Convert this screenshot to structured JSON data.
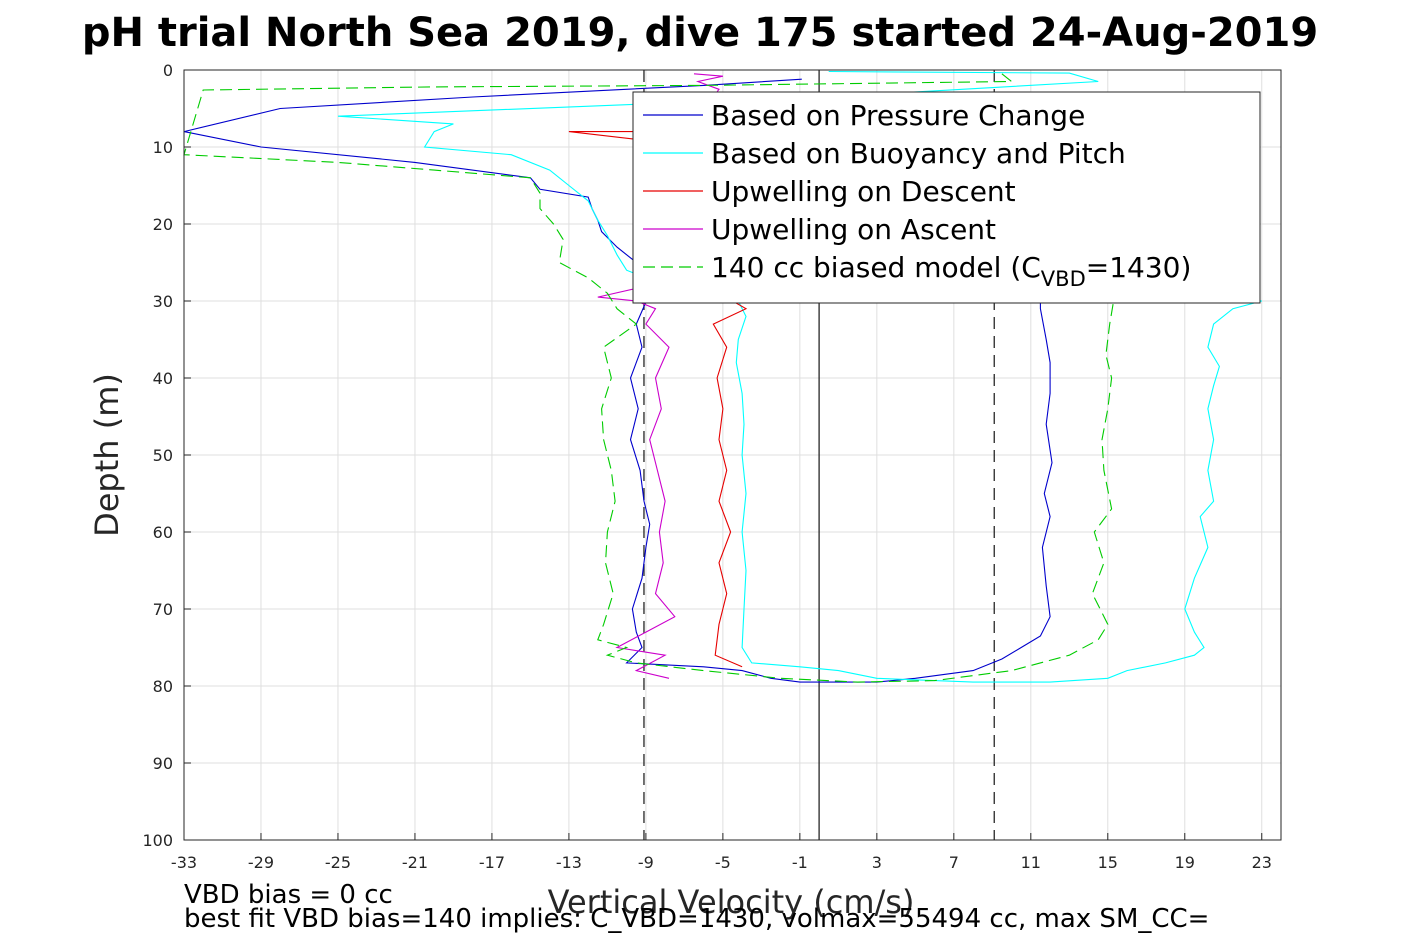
{
  "chart_data": {
    "type": "line",
    "title": "pH trial North Sea 2019, dive 175 started 24-Aug-2019",
    "xlabel": "Vertical Velocity (cm/s)",
    "ylabel": "Depth (m)",
    "xlim": [
      -33,
      24
    ],
    "ylim": [
      0,
      100
    ],
    "y_reversed": true,
    "grid": true,
    "x_ticks": [
      -33,
      -29,
      -25,
      -21,
      -17,
      -13,
      -9,
      -5,
      -1,
      3,
      7,
      11,
      15,
      19,
      23
    ],
    "y_ticks": [
      0,
      10,
      20,
      30,
      40,
      50,
      60,
      70,
      80,
      90,
      100
    ],
    "reference_lines": [
      {
        "x": 0,
        "style": "solid"
      },
      {
        "x": -9.1,
        "style": "dashed"
      },
      {
        "x": 9.1,
        "style": "dashed"
      }
    ],
    "legend": {
      "position": "top-right",
      "entries": [
        {
          "label": "Based on Pressure Change",
          "color": "#0000cc",
          "style": "solid"
        },
        {
          "label": "Based on Buoyancy and Pitch",
          "color": "#00ffff",
          "style": "solid"
        },
        {
          "label": "Upwelling on Descent",
          "color": "#e60000",
          "style": "solid"
        },
        {
          "label": "Upwelling on Ascent",
          "color": "#cc00cc",
          "style": "solid"
        },
        {
          "label_main": "140 cc biased model (C",
          "label_sub": "VBD",
          "label_end": "=1430)",
          "color": "#00cc00",
          "style": "dashed"
        }
      ]
    },
    "series": [
      {
        "name": "Based on Pressure Change",
        "color": "#0000cc",
        "dash": false,
        "points": [
          [
            -0.9,
            1.2
          ],
          [
            -6,
            2
          ],
          [
            -18,
            3.5
          ],
          [
            -28,
            5
          ],
          [
            -33,
            8
          ],
          [
            -29,
            10
          ],
          [
            -21,
            12
          ],
          [
            -15,
            14
          ],
          [
            -14.5,
            15.5
          ],
          [
            -12,
            16.5
          ],
          [
            -11.8,
            18
          ],
          [
            -11.5,
            19.5
          ],
          [
            -11.3,
            21
          ],
          [
            -10.5,
            23
          ],
          [
            -9.5,
            25
          ],
          [
            -9,
            27
          ],
          [
            -8.8,
            29
          ],
          [
            -9.5,
            33
          ],
          [
            -9.2,
            36
          ],
          [
            -9.8,
            40
          ],
          [
            -9.4,
            44
          ],
          [
            -9.8,
            48
          ],
          [
            -9.3,
            52
          ],
          [
            -9.1,
            56
          ],
          [
            -8.8,
            59
          ],
          [
            -9,
            62
          ],
          [
            -9.2,
            66
          ],
          [
            -9.7,
            70
          ],
          [
            -9.5,
            73
          ],
          [
            -9.2,
            75
          ],
          [
            -10,
            77
          ],
          [
            -6,
            77.5
          ],
          [
            -4,
            78
          ],
          [
            -2.5,
            79
          ],
          [
            -1,
            79.5
          ],
          [
            3,
            79.5
          ],
          [
            5,
            79
          ],
          [
            8,
            78
          ],
          [
            9.5,
            76.5
          ],
          [
            10.5,
            75
          ],
          [
            11.5,
            73.5
          ],
          [
            12,
            71
          ],
          [
            11.8,
            67
          ],
          [
            11.6,
            62
          ],
          [
            12,
            58
          ],
          [
            11.7,
            55
          ],
          [
            12.1,
            51
          ],
          [
            11.8,
            46
          ],
          [
            12,
            42
          ],
          [
            12,
            38
          ],
          [
            11.8,
            35
          ],
          [
            11.5,
            31
          ],
          [
            11.5,
            29
          ]
        ]
      },
      {
        "name": "Based on Buoyancy and Pitch",
        "color": "#00ffff",
        "dash": false,
        "points": [
          [
            0.5,
            0.2
          ],
          [
            13,
            0.4
          ],
          [
            14.5,
            1.5
          ],
          [
            4,
            3
          ],
          [
            -5,
            4
          ],
          [
            -25,
            6
          ],
          [
            -19,
            7
          ],
          [
            -20,
            8
          ],
          [
            -20.5,
            10
          ],
          [
            -16,
            11
          ],
          [
            -14,
            13
          ],
          [
            -13,
            15
          ],
          [
            -12,
            17
          ],
          [
            -11.5,
            19.5
          ],
          [
            -11,
            21.5
          ],
          [
            -10.5,
            24
          ],
          [
            -10,
            26
          ],
          [
            -8,
            28
          ],
          [
            -4,
            29
          ],
          [
            -4.2,
            30
          ],
          [
            -3.8,
            32
          ],
          [
            -4.2,
            35
          ],
          [
            -4.3,
            38
          ],
          [
            -4,
            42
          ],
          [
            -3.9,
            46
          ],
          [
            -4,
            50
          ],
          [
            -3.8,
            55
          ],
          [
            -4,
            60
          ],
          [
            -3.8,
            65
          ],
          [
            -3.9,
            70
          ],
          [
            -4,
            75
          ],
          [
            -3.5,
            77
          ],
          [
            -1,
            77.5
          ],
          [
            1,
            78
          ],
          [
            3,
            79
          ],
          [
            8,
            79.5
          ],
          [
            12,
            79.5
          ],
          [
            15,
            79
          ],
          [
            16,
            78
          ],
          [
            18,
            77
          ],
          [
            19.5,
            76
          ],
          [
            20,
            75
          ],
          [
            19.5,
            73
          ],
          [
            19,
            70
          ],
          [
            19.5,
            66
          ],
          [
            20.2,
            62
          ],
          [
            19.8,
            58
          ],
          [
            20.5,
            56
          ],
          [
            20.2,
            52
          ],
          [
            20.5,
            48
          ],
          [
            20.2,
            44
          ],
          [
            20.5,
            41
          ],
          [
            20.8,
            38.5
          ],
          [
            20.2,
            36
          ],
          [
            20.5,
            33
          ],
          [
            21.5,
            31
          ],
          [
            23,
            30
          ],
          [
            20,
            29
          ]
        ]
      },
      {
        "name": "Upwelling on Descent",
        "color": "#e60000",
        "dash": false,
        "points": [
          [
            -3,
            8
          ],
          [
            -13,
            8
          ],
          [
            -9.5,
            9
          ],
          [
            -9.5,
            10
          ]
        ]
      },
      {
        "name": "Upwelling on Descent",
        "color": "#e60000",
        "dash": false,
        "points": [
          [
            -3.8,
            29
          ],
          [
            -4.5,
            30
          ],
          [
            -3.8,
            31
          ],
          [
            -5.5,
            33
          ],
          [
            -4.8,
            36
          ],
          [
            -5.3,
            40
          ],
          [
            -5,
            44
          ],
          [
            -5.2,
            48
          ],
          [
            -4.8,
            52
          ],
          [
            -5.2,
            56
          ],
          [
            -4.6,
            60
          ],
          [
            -5.2,
            64
          ],
          [
            -4.8,
            68
          ],
          [
            -5.2,
            72
          ],
          [
            -5.4,
            76
          ],
          [
            -4,
            77.5
          ]
        ]
      },
      {
        "name": "Upwelling on Ascent",
        "color": "#cc00cc",
        "dash": false,
        "points": [
          [
            -6.5,
            0.5
          ],
          [
            -5,
            0.8
          ],
          [
            -6.3,
            1.5
          ],
          [
            -5.2,
            2.5
          ],
          [
            -5.5,
            3.5
          ]
        ]
      },
      {
        "name": "Upwelling on Ascent",
        "color": "#cc00cc",
        "dash": false,
        "points": [
          [
            -8,
            27.5
          ],
          [
            -11.5,
            29.5
          ],
          [
            -9.5,
            30
          ],
          [
            -8.5,
            31
          ],
          [
            -9,
            33
          ],
          [
            -7.8,
            36
          ],
          [
            -8.5,
            40
          ],
          [
            -8.2,
            44
          ],
          [
            -8.8,
            48
          ],
          [
            -8.4,
            52
          ],
          [
            -8,
            56
          ],
          [
            -8.3,
            60
          ],
          [
            -8.1,
            64
          ],
          [
            -8.5,
            68
          ],
          [
            -7.5,
            71
          ],
          [
            -9,
            73
          ],
          [
            -10.5,
            75
          ],
          [
            -8,
            76
          ],
          [
            -9.5,
            78
          ],
          [
            -7.8,
            79
          ]
        ]
      },
      {
        "name": "140 cc biased model",
        "color": "#00cc00",
        "dash": true,
        "points": [
          [
            9.5,
            0.5
          ],
          [
            10,
            1.5
          ],
          [
            -6,
            2
          ],
          [
            -20,
            2.2
          ],
          [
            -32,
            2.6
          ],
          [
            -33,
            11
          ],
          [
            -25,
            12
          ],
          [
            -20,
            13
          ],
          [
            -15,
            14
          ],
          [
            -14.5,
            16
          ],
          [
            -14.5,
            18
          ],
          [
            -13.8,
            20
          ],
          [
            -13.3,
            22
          ],
          [
            -13.5,
            25
          ],
          [
            -12,
            27
          ],
          [
            -11,
            29
          ],
          [
            -10.5,
            31
          ],
          [
            -9.5,
            33
          ],
          [
            -11.2,
            36
          ],
          [
            -10.8,
            40
          ],
          [
            -11.3,
            44
          ],
          [
            -11.2,
            48
          ],
          [
            -10.8,
            52
          ],
          [
            -10.6,
            56
          ],
          [
            -11,
            60
          ],
          [
            -11.1,
            64
          ],
          [
            -10.7,
            68
          ],
          [
            -11.2,
            72
          ],
          [
            -11.5,
            74
          ],
          [
            -10,
            75
          ],
          [
            -11,
            76
          ],
          [
            -9.5,
            77
          ],
          [
            -6,
            78
          ],
          [
            -2,
            79
          ],
          [
            2,
            79.5
          ],
          [
            6,
            79.3
          ],
          [
            10,
            78
          ],
          [
            13,
            76
          ],
          [
            14.5,
            74
          ],
          [
            15,
            72
          ],
          [
            14.2,
            68
          ],
          [
            14.8,
            64
          ],
          [
            14.3,
            60
          ],
          [
            15.2,
            57
          ],
          [
            14.8,
            52
          ],
          [
            14.7,
            48
          ],
          [
            15,
            44
          ],
          [
            15.2,
            40
          ],
          [
            14.9,
            37
          ],
          [
            15.1,
            33
          ],
          [
            15.3,
            30
          ],
          [
            13,
            29
          ]
        ]
      }
    ]
  },
  "notes": {
    "bias_line": "VBD bias = 0 cc",
    "fit_line": "best fit VBD bias=140 implies: C_VBD=1430, volmax=55494 cc, max SM_CC="
  }
}
